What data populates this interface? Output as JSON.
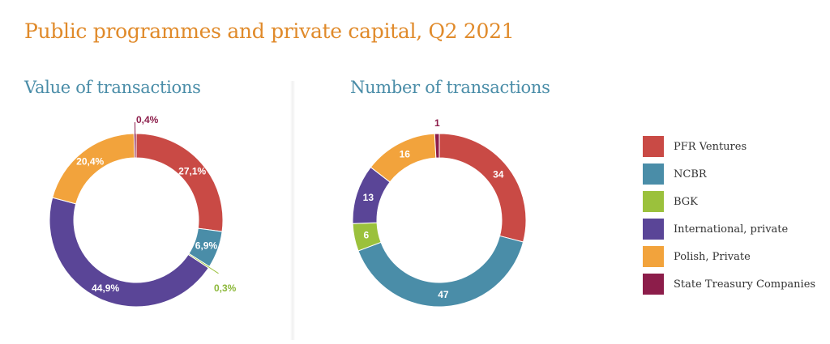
{
  "title": "Public programmes and private capital, Q2 2021",
  "colors": {
    "title": "#e08a2a",
    "subtitle": "#4a8da8",
    "PFR Ventures": "#c94a45",
    "NCBR": "#4a8da8",
    "BGK": "#9bc13c",
    "International, private": "#5a4597",
    "Polish, Private": "#f2a33c",
    "State Treasury Companies": "#8c1d4a"
  },
  "legend": [
    "PFR Ventures",
    "NCBR",
    "BGK",
    "International, private",
    "Polish, Private",
    "State Treasury Companies"
  ],
  "chart_data": [
    {
      "type": "pie",
      "title": "Value of transactions",
      "categories": [
        "PFR Ventures",
        "NCBR",
        "BGK",
        "International, private",
        "Polish, Private",
        "State Treasury Companies"
      ],
      "values": [
        27.1,
        6.9,
        0.3,
        44.9,
        20.4,
        0.4
      ],
      "labels": [
        "27,1%",
        "6,9%",
        "0,3%",
        "44,9%",
        "20,4%",
        "0,4%"
      ]
    },
    {
      "type": "pie",
      "title": "Number of transactions",
      "categories": [
        "PFR Ventures",
        "NCBR",
        "BGK",
        "International, private",
        "Polish, Private",
        "State Treasury Companies"
      ],
      "values": [
        34,
        47,
        6,
        13,
        16,
        1
      ],
      "labels": [
        "34",
        "47",
        "6",
        "13",
        "16",
        "1"
      ]
    }
  ]
}
